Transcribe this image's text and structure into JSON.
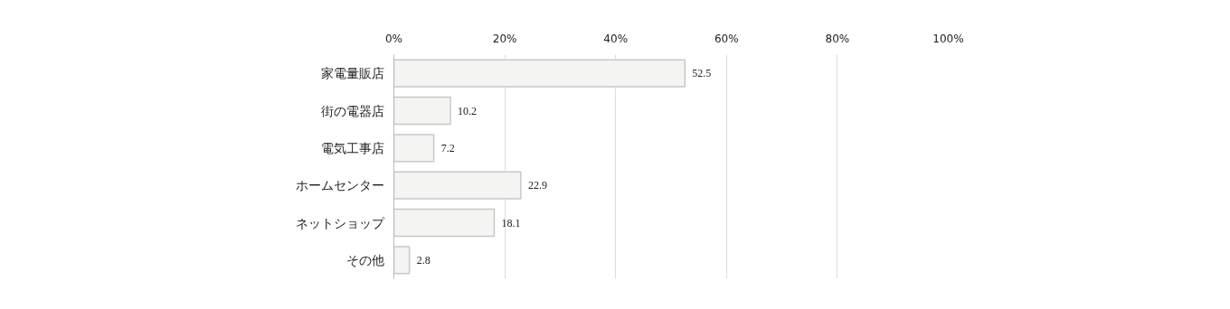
{
  "chart_data": {
    "type": "bar",
    "orientation": "horizontal",
    "categories": [
      "家電量販店",
      "街の電器店",
      "電気工事店",
      "ホームセンター",
      "ネットショップ",
      "その他"
    ],
    "values": [
      52.5,
      10.2,
      7.2,
      22.9,
      18.1,
      2.8
    ],
    "color": "#f4f5f3",
    "xlim": [
      0,
      100
    ],
    "xticks": [
      {
        "value": 0,
        "label": "0%"
      },
      {
        "value": 20,
        "label": "20%"
      },
      {
        "value": 40,
        "label": "40%"
      },
      {
        "value": 60,
        "label": "60%"
      },
      {
        "value": 80,
        "label": "80%"
      },
      {
        "value": 100,
        "label": "100%"
      }
    ],
    "grid": "x",
    "data_labels": true
  }
}
